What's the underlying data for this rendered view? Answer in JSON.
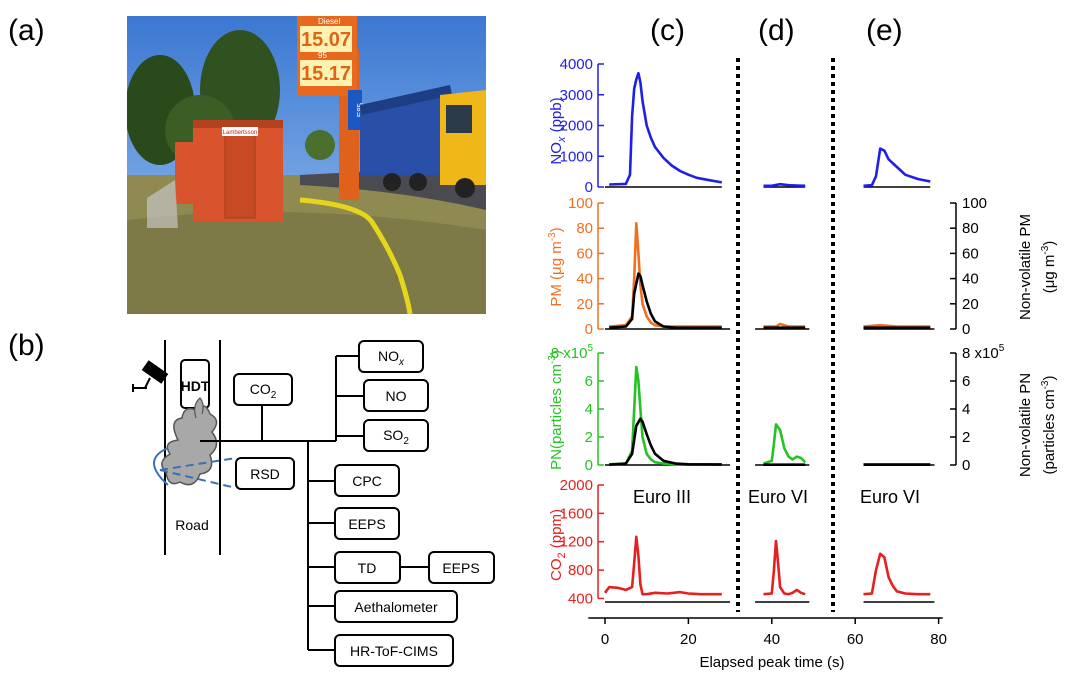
{
  "panel_labels": {
    "a": "(a)",
    "b": "(b)",
    "c": "(c)",
    "d": "(d)",
    "e": "(e)"
  },
  "photo": {
    "sign_row1": "15.07",
    "sign_row2": "15.17",
    "sign_small1": "Diesel",
    "sign_small2": "95",
    "sign_e85": "E85",
    "cabin_sign": "Lambertsson"
  },
  "diagram": {
    "road_label": "Road",
    "hdt_label": "HDT",
    "co2_label": "CO",
    "co2_sub": "2",
    "rsd_label": "RSD",
    "nox_label": "NO",
    "nox_sub": "x",
    "no_label": "NO",
    "so2_label": "SO",
    "so2_sub": "2",
    "cpc_label": "CPC",
    "eeps1_label": "EEPS",
    "td_label": "TD",
    "eeps2_label": "EEPS",
    "aeth_label": "Aethalometer",
    "hrtof_label": "HR-ToF-CIMS"
  },
  "colors": {
    "nox": "#1f1fe6",
    "pm": "#f26f21",
    "pn": "#22c322",
    "co2": "#e61f1f",
    "nonvolatile": "#000000",
    "diagram_dash": "#3b6fb6"
  },
  "chart_data": {
    "type": "line",
    "xlabel": "Elapsed peak time (s)",
    "x_ticks": [
      "0",
      "20",
      "40",
      "60",
      "80"
    ],
    "xlim": [
      -4,
      86
    ],
    "segment_labels": [
      "Euro III",
      "Euro VI",
      "Euro VI"
    ],
    "nox": {
      "ylabel_main": "NO",
      "ylabel_sub": "x",
      "ylabel_unit": " (ppb)",
      "ylim": [
        0,
        4000
      ],
      "y_ticks": [
        "0",
        "1000",
        "2000",
        "3000",
        "4000"
      ],
      "series": [
        {
          "x": [
            1,
            5,
            6,
            6.5,
            7,
            7.5,
            8,
            8.5,
            9,
            10,
            11,
            12,
            14,
            16,
            18,
            20,
            22,
            25,
            28
          ],
          "y": [
            80,
            100,
            400,
            2300,
            3200,
            3500,
            3700,
            3400,
            2800,
            2000,
            1600,
            1300,
            950,
            700,
            520,
            400,
            300,
            220,
            150
          ]
        },
        {
          "x": [
            38,
            40,
            42,
            44,
            46,
            48
          ],
          "y": [
            40,
            40,
            90,
            60,
            50,
            40
          ]
        },
        {
          "x": [
            62,
            64,
            65,
            66,
            67,
            68,
            70,
            72,
            75,
            78
          ],
          "y": [
            40,
            60,
            350,
            1250,
            1180,
            900,
            650,
            400,
            260,
            180
          ]
        }
      ]
    },
    "pm": {
      "ylabel_main": "PM (μg m",
      "ylabel_sup": "-3",
      "ylabel_close": ")",
      "ylim": [
        0,
        100
      ],
      "y_ticks": [
        "0",
        "20",
        "40",
        "60",
        "80",
        "100"
      ],
      "right_ylabel_line1": "Non-volatile PM",
      "right_ylabel_line2": "(μg m",
      "right_ylabel_sup": "-3",
      "right_ylabel_close": ")",
      "series": [
        {
          "name": "PM",
          "x": [
            1,
            5,
            6.5,
            7,
            7.5,
            8,
            8.5,
            9,
            10,
            11,
            12,
            14,
            17,
            20,
            23,
            28
          ],
          "y": [
            2,
            3,
            10,
            40,
            84,
            60,
            35,
            20,
            10,
            5,
            3,
            2,
            2,
            2,
            2,
            2
          ],
          "color_key": "pm"
        },
        {
          "name": "Non-volatile PM",
          "x": [
            1,
            5,
            6.5,
            7,
            8,
            8.5,
            9,
            10,
            11,
            12,
            14,
            17,
            20,
            28
          ],
          "y": [
            1,
            2,
            8,
            28,
            44,
            42,
            35,
            22,
            12,
            6,
            2,
            1,
            1,
            1
          ],
          "color_key": "nonvolatile"
        },
        {
          "name": "PM",
          "x": [
            38,
            41,
            42,
            44,
            48
          ],
          "y": [
            2,
            2,
            4,
            2,
            2
          ],
          "color_key": "pm"
        },
        {
          "name": "Non-volatile PM",
          "x": [
            38,
            48
          ],
          "y": [
            1,
            1
          ],
          "color_key": "nonvolatile"
        },
        {
          "name": "PM",
          "x": [
            62,
            66,
            70,
            78
          ],
          "y": [
            2,
            3,
            2,
            2
          ],
          "color_key": "pm"
        },
        {
          "name": "Non-volatile PM",
          "x": [
            62,
            78
          ],
          "y": [
            1,
            1
          ],
          "color_key": "nonvolatile"
        }
      ]
    },
    "pn": {
      "ylabel_main": "PN",
      "ylabel_unit": "(particles cm",
      "ylabel_sup": "-3",
      "ylabel_close": ")",
      "ylim": [
        0,
        8
      ],
      "y_ticks": [
        "0",
        "2",
        "4",
        "6",
        "8 x10"
      ],
      "y_tick_exp": "5",
      "right_ylabel_line1": "Non-volatile PN",
      "right_ylabel_line2": "(particles cm",
      "right_ylabel_sup": "-3",
      "right_ylabel_close": ")",
      "series": [
        {
          "name": "PN",
          "x": [
            1,
            5,
            6.5,
            7,
            7.5,
            8,
            8.5,
            9,
            10,
            11,
            12,
            14,
            17,
            20,
            28
          ],
          "y": [
            0.05,
            0.1,
            1,
            4,
            7,
            6,
            4,
            2,
            0.8,
            0.4,
            0.2,
            0.1,
            0.05,
            0.05,
            0.05
          ],
          "color_key": "pn"
        },
        {
          "name": "Non-volatile PN",
          "x": [
            1,
            5,
            6.5,
            7.5,
            8.5,
            9,
            10,
            11,
            12,
            14,
            17,
            20,
            28
          ],
          "y": [
            0.02,
            0.1,
            0.8,
            2.8,
            3.3,
            3.1,
            2.2,
            1.4,
            0.8,
            0.3,
            0.1,
            0.05,
            0.03
          ],
          "color_key": "nonvolatile"
        },
        {
          "name": "PN",
          "x": [
            38,
            40,
            40.5,
            41,
            42,
            43,
            44,
            45,
            46,
            47,
            48
          ],
          "y": [
            0.1,
            0.3,
            1.5,
            2.9,
            2.5,
            1.2,
            0.6,
            0.4,
            0.6,
            0.5,
            0.2
          ],
          "color_key": "pn"
        },
        {
          "name": "Non-volatile PN",
          "x": [
            38,
            48
          ],
          "y": [
            0.02,
            0.02
          ],
          "color_key": "nonvolatile"
        },
        {
          "name": "PN",
          "x": [
            62,
            78
          ],
          "y": [
            0.05,
            0.05
          ],
          "color_key": "pn"
        },
        {
          "name": "Non-volatile PN",
          "x": [
            62,
            78
          ],
          "y": [
            0.02,
            0.02
          ],
          "color_key": "nonvolatile"
        }
      ]
    },
    "co2": {
      "ylabel_main": "CO",
      "ylabel_sub": "2",
      "ylabel_unit": " (ppm)",
      "ylim": [
        350,
        2000
      ],
      "y_ticks": [
        "400",
        "800",
        "1200",
        "1600",
        "2000"
      ],
      "series": [
        {
          "x": [
            0,
            1,
            3,
            5,
            6.5,
            7,
            7.5,
            8,
            8.5,
            9,
            10,
            12,
            15,
            18,
            20,
            23,
            26,
            28
          ],
          "y": [
            480,
            560,
            550,
            520,
            560,
            900,
            1270,
            1000,
            600,
            460,
            460,
            480,
            470,
            490,
            470,
            460,
            460,
            460
          ]
        },
        {
          "x": [
            38,
            40,
            40.5,
            41,
            41.5,
            42,
            43,
            44,
            45,
            46,
            47,
            48
          ],
          "y": [
            460,
            470,
            800,
            1210,
            900,
            560,
            470,
            460,
            480,
            520,
            480,
            460
          ]
        },
        {
          "x": [
            62,
            64,
            65,
            66,
            67,
            68,
            69,
            70,
            72,
            75,
            78
          ],
          "y": [
            460,
            470,
            800,
            1030,
            980,
            700,
            580,
            500,
            470,
            460,
            460
          ]
        }
      ]
    }
  }
}
